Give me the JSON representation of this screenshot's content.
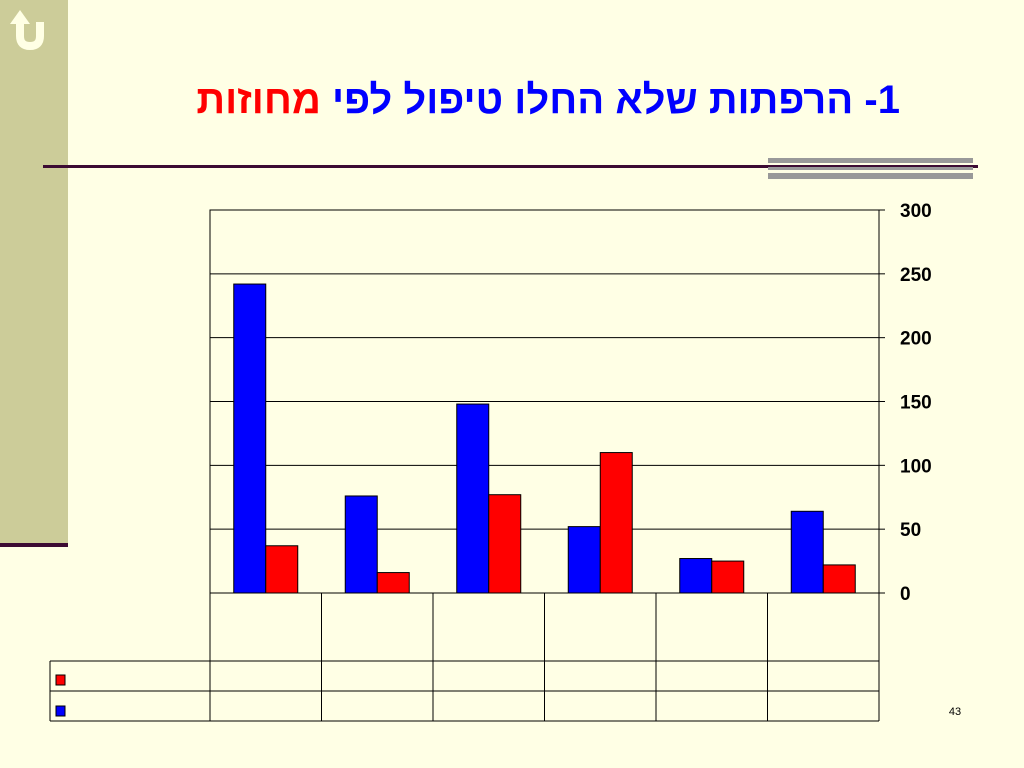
{
  "title": {
    "number": "1-",
    "main": "הרפתות שלא החלו טיפול לפי",
    "highlight": "מחוזות"
  },
  "colors": {
    "series_1": "#ff0000",
    "series_2": "#0000ff",
    "title_main": "#0000ff",
    "title_highlight": "#ff0000",
    "background": "#ffffe5",
    "left_band": "#cccc99",
    "rule": "#3c0b33"
  },
  "icons": {
    "back": "back-arrow-icon"
  },
  "chart_data": {
    "type": "bar",
    "categories": [
      "",
      "",
      "",
      "",
      "",
      ""
    ],
    "series": [
      {
        "color": "#0000ff",
        "values": [
          242,
          76,
          148,
          52,
          27,
          64
        ]
      },
      {
        "color": "#ff0000",
        "values": [
          37,
          16,
          77,
          110,
          25,
          22
        ]
      }
    ],
    "ylim": [
      0,
      300
    ],
    "yticks": [
      0,
      50,
      100,
      150,
      200,
      250,
      300
    ],
    "ytick_labels": [
      "0",
      "50",
      "100",
      "150",
      "200",
      "250",
      "300"
    ],
    "xlabel": "",
    "ylabel": "",
    "grid": true,
    "y_axis_side": "right",
    "legend_placement": "data-table-below",
    "data_table_order": [
      "series_red",
      "series_blue"
    ]
  },
  "slide_number": "43"
}
